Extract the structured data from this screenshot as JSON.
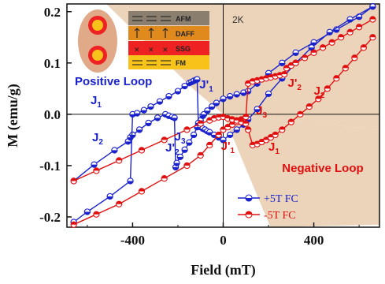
{
  "chart_data": {
    "type": "scatter",
    "xlabel": "Field (mT)",
    "ylabel": "M (emu/g)",
    "xlim": [
      -690,
      690
    ],
    "ylim": [
      -0.22,
      0.215
    ],
    "xticks": [
      -400,
      0,
      400
    ],
    "xtick_labels": [
      "-400",
      "0",
      "400"
    ],
    "yticks": [
      0.2,
      0.1,
      0.0,
      -0.1,
      -0.2
    ],
    "ytick_labels": [
      "0.2",
      "0.1",
      "0.0",
      "-0.1",
      "-0.2"
    ],
    "grid": false,
    "legend_position": "bottom-right",
    "temperature_label": "2K",
    "colors": {
      "blue": "#1a22cc",
      "red": "#e01010",
      "shade": "#e8c9a8"
    },
    "series": [
      {
        "name": "+5T FC",
        "color": "#1a22cc",
        "branches": [
          {
            "x": [
              -660,
              -570,
              -480,
              -420,
              -410,
              -400,
              -370,
              -330,
              -290,
              -255,
              -240,
              -225,
              -215,
              -210,
              -205,
              -190,
              -170,
              -150,
              -130,
              -115,
              -100,
              -90,
              -85,
              -70,
              -50,
              -30,
              0,
              30,
              60,
              90,
              110,
              150,
              200,
              260,
              320,
              400,
              500,
              600,
              660
            ],
            "y": [
              -0.13,
              -0.098,
              -0.07,
              -0.053,
              -0.045,
              -0.04,
              -0.03,
              -0.017,
              -0.007,
              0.0,
              -0.003,
              -0.005,
              -0.007,
              -0.103,
              -0.095,
              -0.083,
              -0.069,
              -0.055,
              -0.04,
              -0.025,
              -0.012,
              -0.003,
              0.0,
              0.007,
              0.015,
              0.022,
              0.03,
              0.035,
              0.039,
              0.042,
              0.045,
              0.06,
              0.08,
              0.1,
              0.12,
              0.14,
              0.165,
              0.19,
              0.21
            ]
          },
          {
            "x": [
              -660,
              -600,
              -500,
              -410,
              -400,
              -380,
              -350,
              -320,
              -280,
              -240,
              -200,
              -170,
              -150,
              -140,
              -130,
              -120,
              -115,
              -110,
              -100,
              -90,
              -80,
              -70,
              -60,
              -40,
              -20,
              0,
              30,
              60,
              90,
              110,
              150,
              200,
              260,
              320,
              390,
              470,
              560,
              660
            ],
            "y": [
              -0.21,
              -0.19,
              -0.16,
              -0.13,
              0.0,
              0.002,
              0.008,
              0.015,
              0.025,
              0.035,
              0.045,
              0.055,
              0.061,
              0.063,
              0.065,
              0.067,
              0.068,
              -0.017,
              -0.025,
              -0.028,
              -0.03,
              -0.033,
              -0.035,
              -0.04,
              -0.045,
              -0.05,
              -0.04,
              -0.03,
              -0.02,
              -0.01,
              0.01,
              0.04,
              0.07,
              0.1,
              0.13,
              0.16,
              0.185,
              0.21
            ]
          }
        ]
      },
      {
        "name": "-5T FC",
        "color": "#e01010",
        "branches": [
          {
            "x": [
              -660,
              -560,
              -460,
              -360,
              -260,
              -160,
              -100,
              -60,
              -20,
              0,
              20,
              40,
              60,
              80,
              100,
              110,
              130,
              150,
              170,
              190,
              210,
              230,
              250,
              270,
              280,
              300,
              320,
              360,
              400,
              440,
              480,
              520,
              560,
              600,
              660
            ],
            "y": [
              -0.215,
              -0.195,
              -0.175,
              -0.15,
              -0.125,
              -0.1,
              -0.08,
              -0.06,
              -0.04,
              -0.03,
              -0.025,
              -0.02,
              -0.015,
              -0.01,
              -0.005,
              0.06,
              0.064,
              0.066,
              0.068,
              0.07,
              0.072,
              0.074,
              0.076,
              0.078,
              0.09,
              0.095,
              0.1,
              0.11,
              0.12,
              0.13,
              0.14,
              0.15,
              0.16,
              0.17,
              0.185
            ]
          },
          {
            "x": [
              -660,
              -560,
              -460,
              -360,
              -260,
              -160,
              -100,
              -60,
              -40,
              -20,
              0,
              20,
              40,
              60,
              80,
              100,
              110,
              130,
              150,
              170,
              190,
              210,
              230,
              260,
              300,
              340,
              380,
              420,
              460,
              500,
              540,
              580,
              620,
              660
            ],
            "y": [
              -0.13,
              -0.11,
              -0.09,
              -0.07,
              -0.05,
              -0.03,
              -0.018,
              -0.012,
              -0.008,
              -0.006,
              -0.005,
              -0.008,
              -0.01,
              -0.012,
              -0.015,
              -0.018,
              -0.03,
              -0.06,
              -0.058,
              -0.054,
              -0.05,
              -0.045,
              -0.04,
              -0.03,
              -0.015,
              0.0,
              0.015,
              0.03,
              0.05,
              0.07,
              0.09,
              0.11,
              0.13,
              0.15
            ]
          }
        ]
      }
    ],
    "annotations": [
      {
        "text": "Positive Loop",
        "color": "blue"
      },
      {
        "text": "Negative Loop",
        "color": "red"
      },
      {
        "text": "J",
        "sub": "1",
        "color": "blue"
      },
      {
        "text": "J'",
        "sub": "1",
        "color": "blue"
      },
      {
        "text": "J",
        "sub": "2",
        "color": "blue"
      },
      {
        "text": "J'",
        "sub": "2",
        "color": "blue"
      },
      {
        "text": "J",
        "sub": "3",
        "color": "blue"
      },
      {
        "text": "J",
        "sub": "3",
        "color": "red"
      },
      {
        "text": "J'",
        "sub": "2",
        "color": "red"
      },
      {
        "text": "J",
        "sub": "2",
        "color": "red"
      },
      {
        "text": "J'",
        "sub": "1",
        "color": "red"
      },
      {
        "text": "J",
        "sub": "1",
        "color": "red"
      }
    ],
    "inset": {
      "layers": [
        "AFM",
        "DAFF",
        "SSG",
        "FM"
      ],
      "layer_colors": [
        "#8a7f6e",
        "#e08a1e",
        "#ee2222",
        "#f7c21a"
      ]
    }
  }
}
